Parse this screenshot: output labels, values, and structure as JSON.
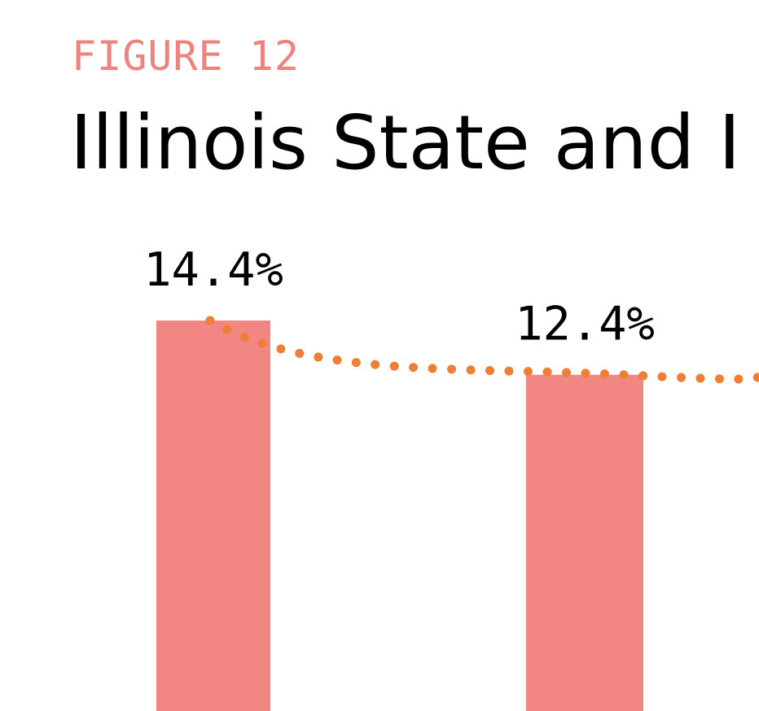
{
  "figure_label": "FIGURE 12",
  "title": "Illinois State and I",
  "colors": {
    "accent": "#f0827e",
    "bar": "#f28682",
    "trend": "#ef7f35",
    "text": "#000000"
  },
  "chart_data": {
    "type": "bar",
    "title": "Illinois State and I",
    "categories": [
      "",
      ""
    ],
    "series": [
      {
        "values": [
          14.4,
          12.4
        ],
        "labels": [
          "14.4%",
          "12.4%"
        ]
      }
    ],
    "trend_line": {
      "style": "dotted",
      "values": [
        14.4,
        12.4
      ]
    },
    "ylim": [
      0,
      22
    ],
    "grid": false
  }
}
